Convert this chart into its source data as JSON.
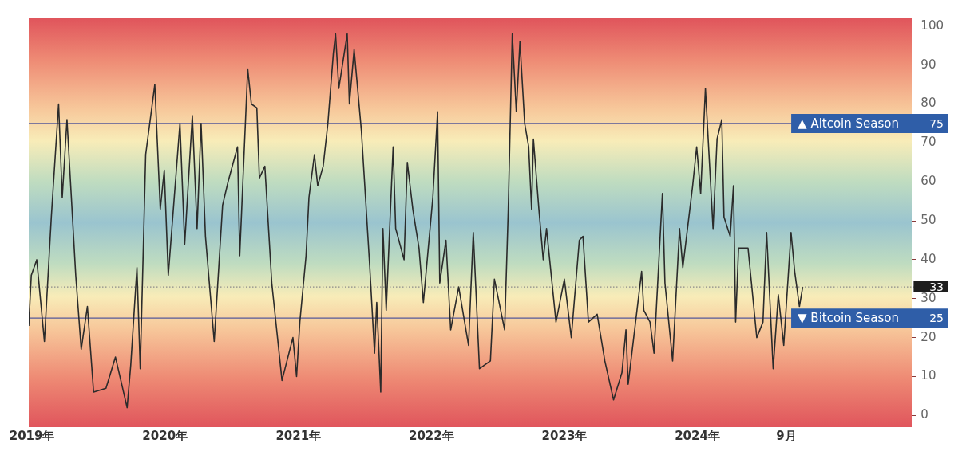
{
  "chart_data": {
    "type": "line",
    "x": [
      "2018-12-23",
      "2018-12-30",
      "2019-01-14",
      "2019-02-04",
      "2019-02-23",
      "2019-03-15",
      "2019-03-25",
      "2019-04-07",
      "2019-05-01",
      "2019-05-16",
      "2019-06-02",
      "2019-06-19",
      "2019-07-23",
      "2019-08-18",
      "2019-09-19",
      "2019-09-29",
      "2019-10-16",
      "2019-10-25",
      "2019-11-09",
      "2019-12-04",
      "2019-12-19",
      "2019-12-30",
      "2020-01-10",
      "2020-02-11",
      "2020-02-24",
      "2020-03-16",
      "2020-03-29",
      "2020-04-09",
      "2020-04-21",
      "2020-05-15",
      "2020-06-07",
      "2020-06-22",
      "2020-07-18",
      "2020-07-24",
      "2020-08-15",
      "2020-08-25",
      "2020-09-09",
      "2020-09-16",
      "2020-10-01",
      "2020-10-20",
      "2020-11-17",
      "2020-12-17",
      "2020-12-27",
      "2021-01-05",
      "2021-01-22",
      "2021-01-30",
      "2021-02-14",
      "2021-02-23",
      "2021-03-10",
      "2021-03-23",
      "2021-04-07",
      "2021-04-13",
      "2021-04-22",
      "2021-05-15",
      "2021-05-21",
      "2021-06-03",
      "2021-06-23",
      "2021-07-16",
      "2021-07-29",
      "2021-08-04",
      "2021-08-15",
      "2021-08-21",
      "2021-08-30",
      "2021-09-18",
      "2021-09-25",
      "2021-10-18",
      "2021-10-27",
      "2021-11-11",
      "2021-11-28",
      "2021-12-10",
      "2022-01-05",
      "2022-01-18",
      "2022-01-24",
      "2022-02-10",
      "2022-02-23",
      "2022-03-17",
      "2022-04-13",
      "2022-04-26",
      "2022-05-13",
      "2022-06-12",
      "2022-06-23",
      "2022-07-21",
      "2022-07-31",
      "2022-08-11",
      "2022-08-22",
      "2022-09-01",
      "2022-09-14",
      "2022-09-25",
      "2022-10-03",
      "2022-10-08",
      "2022-10-23",
      "2022-11-04",
      "2022-11-13",
      "2022-12-09",
      "2023-01-01",
      "2023-01-20",
      "2023-02-11",
      "2023-02-21",
      "2023-03-08",
      "2023-04-01",
      "2023-04-22",
      "2023-05-16",
      "2023-06-08",
      "2023-06-19",
      "2023-06-25",
      "2023-08-01",
      "2023-08-07",
      "2023-08-24",
      "2023-09-04",
      "2023-09-27",
      "2023-10-04",
      "2023-10-25",
      "2023-11-13",
      "2023-11-22",
      "2023-12-19",
      "2023-12-30",
      "2024-01-10",
      "2024-01-23",
      "2024-02-13",
      "2024-02-24",
      "2024-03-08",
      "2024-03-14",
      "2024-03-31",
      "2024-04-09",
      "2024-04-15",
      "2024-04-23",
      "2024-05-19",
      "2024-06-12",
      "2024-06-29",
      "2024-07-09",
      "2024-07-27",
      "2024-08-10",
      "2024-08-25",
      "2024-09-14",
      "2024-09-24",
      "2024-10-07",
      "2024-10-16"
    ],
    "series": [
      {
        "color": "#2b2b2b",
        "values": [
          23,
          36,
          40,
          19,
          51,
          80,
          56,
          76,
          36,
          17,
          28,
          6,
          7,
          15,
          2,
          13,
          38,
          12,
          67,
          85,
          53,
          63,
          36,
          75,
          44,
          77,
          48,
          75,
          46,
          19,
          54,
          60,
          69,
          41,
          89,
          80,
          79,
          61,
          64,
          34,
          9,
          20,
          10,
          24,
          41,
          56,
          67,
          59,
          64,
          75,
          93,
          98,
          84,
          98,
          80,
          94,
          73,
          38,
          16,
          29,
          6,
          48,
          27,
          69,
          48,
          40,
          65,
          53,
          43,
          29,
          56,
          78,
          34,
          45,
          22,
          33,
          18,
          47,
          12,
          14,
          35,
          22,
          53,
          98,
          78,
          96,
          75,
          69,
          53,
          71,
          53,
          40,
          48,
          24,
          35,
          20,
          45,
          46,
          24,
          26,
          14,
          4,
          11,
          22,
          8,
          37,
          27,
          24,
          16,
          57,
          34,
          14,
          48,
          38,
          59,
          69,
          57,
          84,
          48,
          71,
          76,
          51,
          46,
          59,
          24,
          43,
          43,
          20,
          24,
          47,
          12,
          31,
          18,
          47,
          37,
          28,
          33
        ]
      }
    ],
    "xlim": [
      "2018-12-23",
      "2025-08-12"
    ],
    "xticks": [
      {
        "value": "2019-01-01",
        "label": "2019年"
      },
      {
        "value": "2020-01-01",
        "label": "2020年"
      },
      {
        "value": "2021-01-01",
        "label": "2021年"
      },
      {
        "value": "2022-01-01",
        "label": "2022年"
      },
      {
        "value": "2023-01-01",
        "label": "2023年"
      },
      {
        "value": "2024-01-01",
        "label": "2024年"
      },
      {
        "value": "2024-09-01",
        "label": "9月"
      }
    ],
    "ylim": [
      -3,
      102
    ],
    "yticks": [
      0,
      10,
      20,
      30,
      40,
      50,
      60,
      70,
      80,
      90,
      100
    ],
    "ref_lines": [
      {
        "axis": "y",
        "value": 75,
        "label": "▲ Altcoin Season",
        "color": "#55599a",
        "line_style": "solid"
      },
      {
        "axis": "y",
        "value": 25,
        "label": "▼ Bitcoin Season",
        "color": "#55599a",
        "line_style": "solid"
      },
      {
        "axis": "y",
        "value": 33,
        "label": null,
        "color": "#8a8a8a",
        "line_style": "dotted"
      }
    ],
    "annotations": [
      {
        "text": "75",
        "y": 75
      },
      {
        "text": "25",
        "y": 25
      },
      {
        "text": "33",
        "y": 33
      }
    ],
    "grid": false,
    "legend": false,
    "marker": "none",
    "line_style": "solid"
  }
}
